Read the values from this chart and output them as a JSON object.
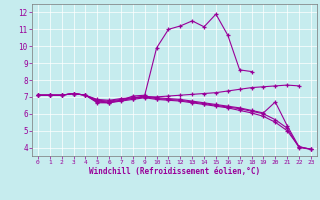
{
  "xlabel": "Windchill (Refroidissement éolien,°C)",
  "xlim": [
    -0.5,
    23.5
  ],
  "ylim": [
    3.5,
    12.5
  ],
  "xticks": [
    0,
    1,
    2,
    3,
    4,
    5,
    6,
    7,
    8,
    9,
    10,
    11,
    12,
    13,
    14,
    15,
    16,
    17,
    18,
    19,
    20,
    21,
    22,
    23
  ],
  "yticks": [
    4,
    5,
    6,
    7,
    8,
    9,
    10,
    11,
    12
  ],
  "bg_color": "#c6ecee",
  "line_color": "#990099",
  "grid_color": "#ffffff",
  "lines": [
    {
      "x": [
        0,
        1,
        2,
        3,
        4,
        5,
        6,
        7,
        8,
        9,
        10,
        11,
        12,
        13,
        14,
        15,
        16,
        17,
        18
      ],
      "y": [
        7.1,
        7.1,
        7.1,
        7.2,
        7.1,
        6.65,
        6.65,
        6.8,
        7.05,
        7.1,
        9.9,
        11.0,
        11.2,
        11.5,
        11.15,
        11.9,
        10.65,
        8.6,
        8.5
      ]
    },
    {
      "x": [
        0,
        1,
        2,
        3,
        4,
        5,
        6,
        7,
        8,
        9,
        10,
        11,
        12,
        13,
        14,
        15,
        16,
        17,
        18,
        19,
        20,
        21,
        22
      ],
      "y": [
        7.1,
        7.1,
        7.1,
        7.2,
        7.1,
        6.85,
        6.8,
        6.9,
        6.95,
        7.0,
        7.0,
        7.05,
        7.1,
        7.15,
        7.2,
        7.25,
        7.35,
        7.45,
        7.55,
        7.6,
        7.65,
        7.7,
        7.65
      ]
    },
    {
      "x": [
        0,
        1,
        2,
        3,
        4,
        5,
        6,
        7,
        8,
        9,
        10,
        11,
        12,
        13,
        14,
        15,
        16,
        17,
        18,
        19,
        20,
        21,
        22,
        23
      ],
      "y": [
        7.1,
        7.1,
        7.1,
        7.2,
        7.1,
        6.7,
        6.65,
        6.75,
        6.85,
        6.95,
        6.85,
        6.8,
        6.75,
        6.65,
        6.55,
        6.45,
        6.35,
        6.2,
        6.05,
        5.85,
        5.5,
        5.0,
        4.05,
        3.9
      ]
    },
    {
      "x": [
        0,
        1,
        2,
        3,
        4,
        5,
        6,
        7,
        8,
        9,
        10,
        11,
        12,
        13,
        14,
        15,
        16,
        17,
        18,
        19,
        20,
        21,
        22,
        23
      ],
      "y": [
        7.1,
        7.1,
        7.1,
        7.2,
        7.1,
        6.75,
        6.7,
        6.8,
        6.9,
        7.0,
        6.9,
        6.85,
        6.8,
        6.7,
        6.6,
        6.5,
        6.4,
        6.3,
        6.15,
        6.0,
        5.65,
        5.15,
        4.0,
        3.9
      ]
    },
    {
      "x": [
        0,
        1,
        2,
        3,
        4,
        5,
        6,
        7,
        8,
        9,
        10,
        11,
        12,
        13,
        14,
        15,
        16,
        17,
        18,
        19,
        20,
        21,
        22,
        23
      ],
      "y": [
        7.1,
        7.1,
        7.1,
        7.2,
        7.1,
        6.8,
        6.75,
        6.85,
        6.95,
        7.05,
        6.95,
        6.9,
        6.85,
        6.75,
        6.65,
        6.55,
        6.45,
        6.35,
        6.2,
        6.05,
        6.7,
        5.3,
        4.05,
        3.9
      ]
    }
  ]
}
